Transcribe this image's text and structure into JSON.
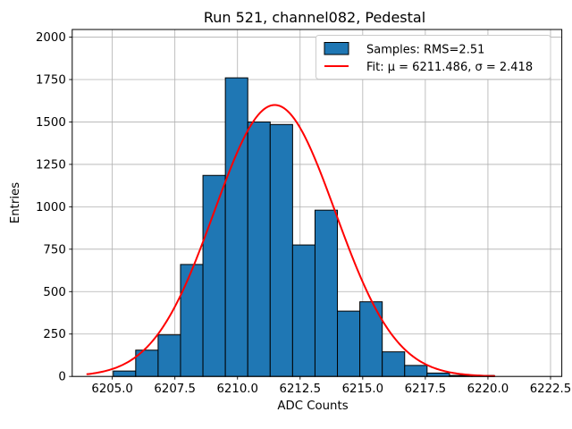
{
  "chart_data": {
    "type": "histogram",
    "title": "Run 521, channel082, Pedestal",
    "xlabel": "ADC Counts",
    "ylabel": "Entries",
    "xlim": [
      6203.4,
      6222.95
    ],
    "ylim": [
      0,
      2045
    ],
    "grid": true,
    "legend_position": "upper right",
    "xticks": {
      "values": [
        6205.0,
        6207.5,
        6210.0,
        6212.5,
        6215.0,
        6217.5,
        6220.0,
        6222.5
      ],
      "labels": [
        "6205.0",
        "6207.5",
        "6210.0",
        "6212.5",
        "6215.0",
        "6217.5",
        "6220.0",
        "6222.5"
      ]
    },
    "yticks": {
      "values": [
        0,
        250,
        500,
        750,
        1000,
        1250,
        1500,
        1750,
        2000
      ],
      "labels": [
        "0",
        "250",
        "500",
        "750",
        "1000",
        "1250",
        "1500",
        "1750",
        "2000"
      ]
    },
    "histogram": {
      "bin_start": 6205.04,
      "bin_width": 0.895,
      "counts": [
        32,
        155,
        245,
        660,
        1185,
        1760,
        1500,
        1485,
        775,
        980,
        385,
        440,
        145,
        65,
        20,
        6,
        6
      ],
      "fill_color": "#1f77b4",
      "edge_color": "#000000"
    },
    "fit": {
      "type": "gaussian",
      "mu": 6211.486,
      "sigma": 2.418,
      "amplitude": 1600,
      "x_range": [
        6204.0,
        6220.26
      ],
      "color": "#ff0000",
      "line_width": 2
    },
    "legend": {
      "items": [
        {
          "marker": "patch",
          "color": "#1f77b4",
          "label": "Samples: RMS=2.51"
        },
        {
          "marker": "line",
          "color": "#ff0000",
          "label": "Fit: μ = 6211.486, σ = 2.418"
        }
      ]
    },
    "stats": {
      "rms": 2.51,
      "fit_mu": 6211.486,
      "fit_sigma": 2.418
    }
  }
}
